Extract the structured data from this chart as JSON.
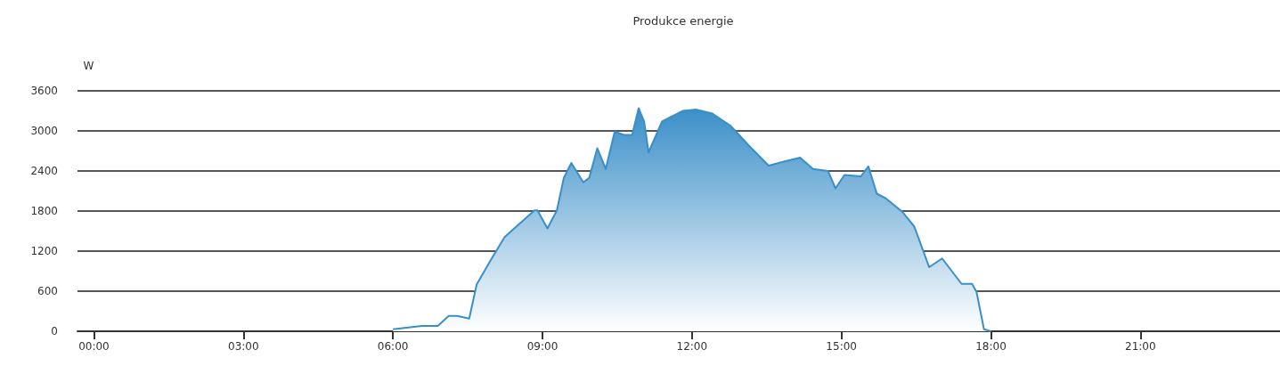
{
  "chart_data": {
    "type": "area",
    "title": "Produkce energie",
    "ylabel": "W",
    "x": [
      6.0,
      6.58,
      6.9,
      7.12,
      7.29,
      7.53,
      7.68,
      7.95,
      8.24,
      8.54,
      8.84,
      8.9,
      9.1,
      9.29,
      9.43,
      9.58,
      9.82,
      9.94,
      10.1,
      10.27,
      10.45,
      10.63,
      10.8,
      10.93,
      11.04,
      11.13,
      11.4,
      11.58,
      11.82,
      12.08,
      12.41,
      12.77,
      13.13,
      13.54,
      13.84,
      14.17,
      14.43,
      14.73,
      14.88,
      15.06,
      15.39,
      15.54,
      15.71,
      15.89,
      16.22,
      16.46,
      16.76,
      17.02,
      17.41,
      17.62,
      17.71,
      17.86,
      18.0
    ],
    "series": [
      {
        "color": "#3a8fc8",
        "values": [
          30,
          80,
          80,
          230,
          230,
          190,
          700,
          1050,
          1410,
          1610,
          1810,
          1810,
          1540,
          1810,
          2300,
          2520,
          2230,
          2300,
          2740,
          2430,
          2990,
          2940,
          2940,
          3340,
          3140,
          2680,
          3140,
          3210,
          3300,
          3320,
          3260,
          3080,
          2790,
          2480,
          2540,
          2600,
          2430,
          2400,
          2140,
          2340,
          2320,
          2470,
          2060,
          1990,
          1790,
          1570,
          960,
          1090,
          710,
          710,
          590,
          30,
          0
        ]
      }
    ],
    "xlim": [
      -0.33,
      23.8
    ],
    "xticks": [
      {
        "value": 0,
        "label": "00:00"
      },
      {
        "value": 3,
        "label": "03:00"
      },
      {
        "value": 6,
        "label": "06:00"
      },
      {
        "value": 9,
        "label": "09:00"
      },
      {
        "value": 12,
        "label": "12:00"
      },
      {
        "value": 15,
        "label": "15:00"
      },
      {
        "value": 18,
        "label": "18:00"
      },
      {
        "value": 21,
        "label": "21:00"
      }
    ],
    "ylim": [
      0,
      3600
    ],
    "yticks": [
      0,
      600,
      1200,
      1800,
      2400,
      3000,
      3600
    ],
    "grid": "y",
    "marker": "none",
    "line_style": "solid"
  }
}
